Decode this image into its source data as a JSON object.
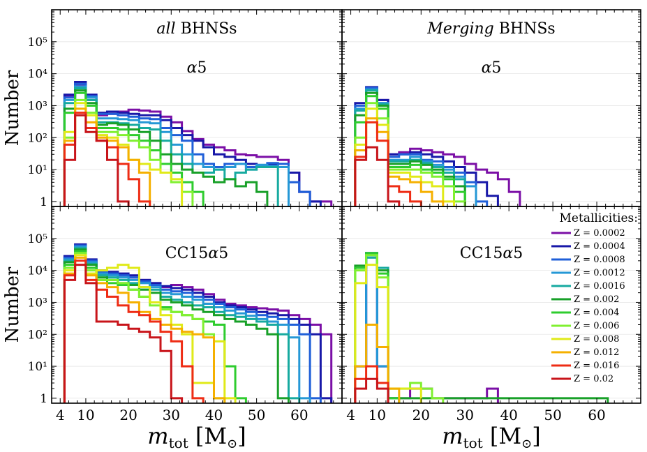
{
  "figure": {
    "ylabel": "Number",
    "xlabel_main": "m",
    "xlabel_sub": "tot",
    "xlabel_unit_open": " [M",
    "xlabel_unit_sun": "⊙",
    "xlabel_unit_close": "]",
    "legend_title": "Metallicities:"
  },
  "colors": {
    "Z = 0.0002": "#7b0fa6",
    "Z = 0.0004": "#1818a8",
    "Z = 0.0008": "#1f5fd8",
    "Z = 0.0012": "#2598d6",
    "Z = 0.0016": "#17aaa0",
    "Z = 0.002": "#18a028",
    "Z = 0.004": "#2ecc2e",
    "Z = 0.006": "#80f030",
    "Z = 0.008": "#e0ea18",
    "Z = 0.012": "#f5b000",
    "Z = 0.016": "#ee2c14",
    "Z = 0.02": "#c8141a"
  },
  "chart_data": [
    {
      "type": "line",
      "panel": "top-left",
      "title_italic": "all",
      "title_rest": " BHNSs",
      "model_label": "α5",
      "xlim": [
        2,
        70
      ],
      "xticks": [
        4,
        10,
        20,
        30,
        40,
        50,
        60
      ],
      "ylim": [
        0.7,
        1000000
      ],
      "ytick_labels": [
        "1",
        "10¹",
        "10²",
        "10³",
        "10⁴",
        "10⁵"
      ],
      "bin_edges": [
        5,
        7.5,
        10,
        12.5,
        15,
        17.5,
        20,
        22.5,
        25,
        27.5,
        30,
        32.5,
        35,
        37.5,
        40,
        42.5,
        45,
        47.5,
        50,
        52.5,
        55,
        57.5,
        60,
        62.5,
        65,
        67.5
      ],
      "series": [
        {
          "name": "Z = 0.0002",
          "values": [
            2000,
            4500,
            1500,
            500,
            550,
            650,
            750,
            700,
            650,
            450,
            300,
            160,
            90,
            60,
            50,
            40,
            30,
            28,
            25,
            25,
            20,
            8,
            2,
            1,
            1
          ]
        },
        {
          "name": "Z = 0.0004",
          "values": [
            2200,
            5500,
            2200,
            600,
            650,
            600,
            550,
            500,
            500,
            350,
            200,
            120,
            80,
            50,
            30,
            25,
            20,
            15,
            12,
            14,
            15,
            8,
            2,
            1
          ]
        },
        {
          "name": "Z = 0.0008",
          "values": [
            1800,
            4800,
            2000,
            550,
            550,
            500,
            450,
            400,
            380,
            200,
            120,
            80,
            30,
            15,
            12,
            15,
            15,
            12,
            14,
            16,
            15,
            4,
            2
          ]
        },
        {
          "name": "Z = 0.0012",
          "values": [
            1500,
            4000,
            1800,
            400,
            400,
            380,
            350,
            300,
            280,
            150,
            60,
            30,
            15,
            12,
            10,
            12,
            15,
            10,
            14,
            13,
            12
          ]
        },
        {
          "name": "Z = 0.0016",
          "values": [
            1200,
            3500,
            1500,
            300,
            300,
            280,
            250,
            200,
            180,
            80,
            30,
            15,
            8,
            8,
            10,
            5,
            8,
            10,
            12,
            12
          ]
        },
        {
          "name": "Z = 0.002",
          "values": [
            800,
            3000,
            1200,
            250,
            280,
            250,
            180,
            150,
            80,
            30,
            15,
            10,
            8,
            6,
            4,
            5,
            3,
            4,
            2
          ]
        },
        {
          "name": "Z = 0.004",
          "values": [
            600,
            2500,
            1000,
            200,
            200,
            180,
            120,
            80,
            40,
            15,
            8,
            4,
            2
          ]
        },
        {
          "name": "Z = 0.006",
          "values": [
            100,
            1500,
            600,
            150,
            150,
            120,
            80,
            50,
            20,
            8,
            4,
            2
          ]
        },
        {
          "name": "Z = 0.008",
          "values": [
            150,
            1200,
            500,
            120,
            100,
            60,
            20,
            15,
            10,
            8,
            5
          ]
        },
        {
          "name": "Z = 0.012",
          "values": [
            80,
            800,
            300,
            100,
            80,
            50,
            20,
            8
          ]
        },
        {
          "name": "Z = 0.016",
          "values": [
            60,
            600,
            200,
            80,
            50,
            15,
            5,
            1
          ]
        },
        {
          "name": "Z = 0.02",
          "values": [
            20,
            500,
            150,
            80,
            20,
            1
          ]
        }
      ]
    },
    {
      "type": "line",
      "panel": "top-right",
      "title_italic": "Merging",
      "title_rest": " BHNSs",
      "model_label": "α5",
      "xlim": [
        2,
        70
      ],
      "xticks": [
        4,
        10,
        20,
        30,
        40,
        50,
        60
      ],
      "ylim": [
        0.7,
        1000000
      ],
      "bin_edges": [
        5,
        7.5,
        10,
        12.5,
        15,
        17.5,
        20,
        22.5,
        25,
        27.5,
        30,
        32.5,
        35,
        37.5,
        40,
        42.5,
        45,
        47.5,
        50
      ],
      "series": [
        {
          "name": "Z = 0.0002",
          "values": [
            1000,
            3500,
            1500,
            30,
            35,
            45,
            40,
            35,
            30,
            25,
            15,
            10,
            8,
            5,
            2
          ]
        },
        {
          "name": "Z = 0.0004",
          "values": [
            1200,
            3800,
            1500,
            30,
            30,
            35,
            30,
            25,
            18,
            12,
            8,
            4,
            1.5
          ]
        },
        {
          "name": "Z = 0.0008",
          "values": [
            1000,
            3600,
            1200,
            25,
            30,
            30,
            20,
            18,
            12,
            8,
            4,
            1
          ]
        },
        {
          "name": "Z = 0.0012",
          "values": [
            800,
            3200,
            1200,
            20,
            20,
            25,
            18,
            14,
            10,
            6,
            3
          ]
        },
        {
          "name": "Z = 0.0016",
          "values": [
            700,
            3000,
            1100,
            18,
            18,
            20,
            16,
            12,
            8,
            5
          ]
        },
        {
          "name": "Z = 0.002",
          "values": [
            500,
            2500,
            1000,
            15,
            15,
            18,
            14,
            10,
            6,
            3
          ]
        },
        {
          "name": "Z = 0.004",
          "values": [
            300,
            2000,
            800,
            12,
            12,
            14,
            10,
            8,
            5,
            2
          ]
        },
        {
          "name": "Z = 0.006",
          "values": [
            100,
            1200,
            400,
            10,
            10,
            10,
            8,
            6,
            3,
            1
          ]
        },
        {
          "name": "Z = 0.008",
          "values": [
            60,
            800,
            250,
            8,
            8,
            6,
            4,
            3,
            1
          ]
        },
        {
          "name": "Z = 0.012",
          "values": [
            40,
            400,
            150,
            6,
            5,
            4,
            2,
            1
          ]
        },
        {
          "name": "Z = 0.016",
          "values": [
            25,
            300,
            80,
            3,
            2,
            1
          ]
        },
        {
          "name": "Z = 0.02",
          "values": [
            20,
            50,
            20,
            1
          ]
        }
      ]
    },
    {
      "type": "line",
      "panel": "bottom-left",
      "model_label": "CC15α5",
      "xlim": [
        2,
        70
      ],
      "xticks": [
        4,
        10,
        20,
        30,
        40,
        50,
        60
      ],
      "ylim": [
        0.7,
        1000000
      ],
      "ytick_labels": [
        "1",
        "10¹",
        "10²",
        "10³",
        "10⁴",
        "10⁵"
      ],
      "bin_edges": [
        5,
        7.5,
        10,
        12.5,
        15,
        17.5,
        20,
        22.5,
        25,
        27.5,
        30,
        32.5,
        35,
        37.5,
        40,
        42.5,
        45,
        47.5,
        50,
        52.5,
        55,
        57.5,
        60,
        62.5,
        65,
        67.5
      ],
      "series": [
        {
          "name": "Z = 0.0002",
          "values": [
            25000,
            60000,
            20000,
            9000,
            8000,
            7000,
            6000,
            5000,
            4000,
            3000,
            3500,
            3000,
            2500,
            1800,
            1200,
            900,
            800,
            700,
            650,
            600,
            550,
            400,
            300,
            200,
            100,
            1
          ]
        },
        {
          "name": "Z = 0.0004",
          "values": [
            28000,
            65000,
            22000,
            10000,
            9000,
            8000,
            7000,
            5000,
            4000,
            3200,
            2800,
            2500,
            2000,
            1500,
            1000,
            800,
            700,
            600,
            500,
            450,
            400,
            300,
            200,
            100,
            1
          ]
        },
        {
          "name": "Z = 0.0008",
          "values": [
            25000,
            60000,
            20000,
            9000,
            8000,
            7000,
            6000,
            4500,
            3500,
            2500,
            2200,
            2000,
            1500,
            1200,
            900,
            700,
            600,
            500,
            400,
            350,
            300,
            200,
            100,
            1
          ]
        },
        {
          "name": "Z = 0.0012",
          "values": [
            22000,
            55000,
            18000,
            8000,
            7000,
            6000,
            5000,
            4000,
            3000,
            2000,
            1800,
            1500,
            1200,
            900,
            700,
            550,
            450,
            380,
            300,
            250,
            200,
            80,
            1
          ]
        },
        {
          "name": "Z = 0.0016",
          "values": [
            20000,
            50000,
            16000,
            7000,
            6000,
            5000,
            4000,
            3000,
            2500,
            1500,
            1200,
            1000,
            800,
            700,
            500,
            400,
            350,
            300,
            250,
            200,
            100,
            1
          ]
        },
        {
          "name": "Z = 0.002",
          "values": [
            18000,
            45000,
            15000,
            6000,
            5000,
            4000,
            3500,
            2500,
            2000,
            1200,
            1000,
            800,
            600,
            500,
            400,
            300,
            250,
            200,
            150,
            100,
            1
          ]
        },
        {
          "name": "Z = 0.004",
          "values": [
            15000,
            40000,
            12000,
            5000,
            4000,
            3500,
            2500,
            1500,
            1000,
            700,
            500,
            400,
            300,
            250,
            200,
            10,
            1
          ]
        },
        {
          "name": "Z = 0.006",
          "values": [
            12000,
            35000,
            10000,
            5000,
            5000,
            4000,
            2500,
            1500,
            800,
            600,
            500,
            400,
            300,
            100,
            1
          ]
        },
        {
          "name": "Z = 0.008",
          "values": [
            10000,
            30000,
            8000,
            10000,
            12000,
            15000,
            12000,
            3000,
            1000,
            400,
            200,
            100,
            3,
            3,
            60,
            1
          ]
        },
        {
          "name": "Z = 0.012",
          "values": [
            8000,
            25000,
            7000,
            4000,
            3000,
            2000,
            1000,
            500,
            300,
            200,
            150,
            120,
            100,
            80,
            1
          ]
        },
        {
          "name": "Z = 0.016",
          "values": [
            7000,
            20000,
            5000,
            2500,
            1500,
            800,
            500,
            400,
            250,
            120,
            60,
            10,
            1
          ]
        },
        {
          "name": "Z = 0.02",
          "values": [
            5000,
            15000,
            4000,
            250,
            250,
            200,
            150,
            120,
            80,
            30,
            1
          ]
        }
      ]
    },
    {
      "type": "line",
      "panel": "bottom-right",
      "model_label": "CC15α5",
      "xlim": [
        2,
        70
      ],
      "xticks": [
        4,
        10,
        20,
        30,
        40,
        50,
        60
      ],
      "ylim": [
        0.7,
        1000000
      ],
      "bin_edges": [
        5,
        7.5,
        10,
        12.5,
        15,
        17.5,
        20,
        22.5,
        25,
        27.5,
        30,
        32.5,
        35,
        37.5,
        40,
        42.5,
        45,
        47.5,
        50,
        52.5,
        55,
        57.5,
        60,
        62.5
      ],
      "series": [
        {
          "name": "Z = 0.0002",
          "values": [
            10,
            30000,
            10,
            1,
            1,
            2,
            2,
            1,
            1,
            1,
            1,
            1,
            2
          ]
        },
        {
          "name": "Z = 0.0004",
          "values": [
            10,
            35000,
            10,
            1
          ]
        },
        {
          "name": "Z = 0.0008",
          "values": [
            10,
            35000,
            10,
            1
          ]
        },
        {
          "name": "Z = 0.0012",
          "values": [
            10,
            30000,
            10,
            1
          ]
        },
        {
          "name": "Z = 0.0016",
          "values": [
            12000,
            25000,
            12000,
            1
          ]
        },
        {
          "name": "Z = 0.002",
          "values": [
            14000,
            30000,
            10000,
            1,
            1,
            1,
            1,
            1,
            1,
            1,
            1,
            1,
            1,
            1,
            1,
            1,
            1,
            1,
            1,
            1,
            1,
            1,
            1
          ]
        },
        {
          "name": "Z = 0.004",
          "values": [
            12000,
            35000,
            8000,
            1
          ]
        },
        {
          "name": "Z = 0.006",
          "values": [
            10000,
            30000,
            6000,
            2,
            2,
            3,
            2,
            1
          ]
        },
        {
          "name": "Z = 0.008",
          "values": [
            4000,
            15000,
            3000,
            2,
            2,
            2
          ]
        },
        {
          "name": "Z = 0.012",
          "values": [
            10,
            200,
            40,
            2
          ]
        },
        {
          "name": "Z = 0.016",
          "values": [
            4,
            10,
            3
          ]
        },
        {
          "name": "Z = 0.02",
          "values": [
            2,
            4,
            2
          ]
        }
      ]
    }
  ]
}
